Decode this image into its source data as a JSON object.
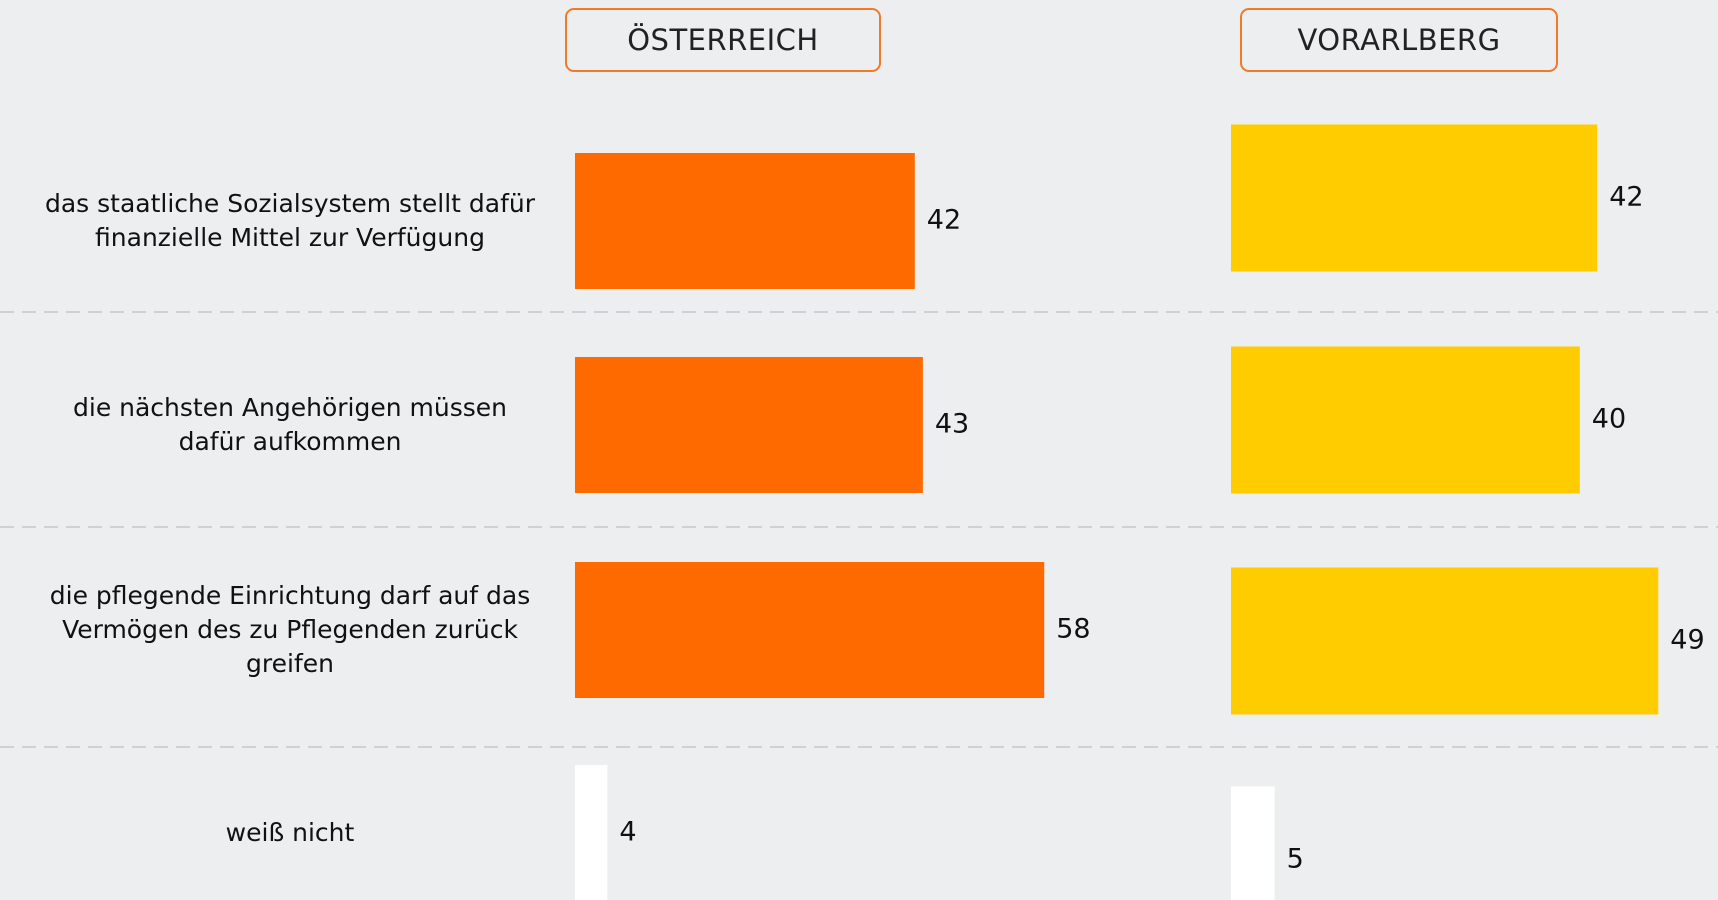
{
  "chart_data": {
    "type": "bar",
    "categories": [
      "das staatliche Sozialsystem stellt dafür finanzielle Mittel zur Verfügung",
      "die nächsten Angehörigen müssen dafür aufkommen",
      "die pflegende Einrichtung darf auf das Vermögen des zu Pflegenden zurück greifen",
      "weiß nicht"
    ],
    "series": [
      {
        "name": "ÖSTERREICH",
        "color": "#ff6a00",
        "colors": [
          "#ff6a00",
          "#ff6a00",
          "#ff6a00",
          "#ffffff"
        ],
        "values": [
          42,
          43,
          58,
          4
        ]
      },
      {
        "name": "VORARLBERG",
        "color": "#ffcc00",
        "colors": [
          "#ffcc00",
          "#ffcc00",
          "#ffcc00",
          "#ffffff"
        ],
        "values": [
          42,
          40,
          49,
          5
        ]
      }
    ]
  }
}
